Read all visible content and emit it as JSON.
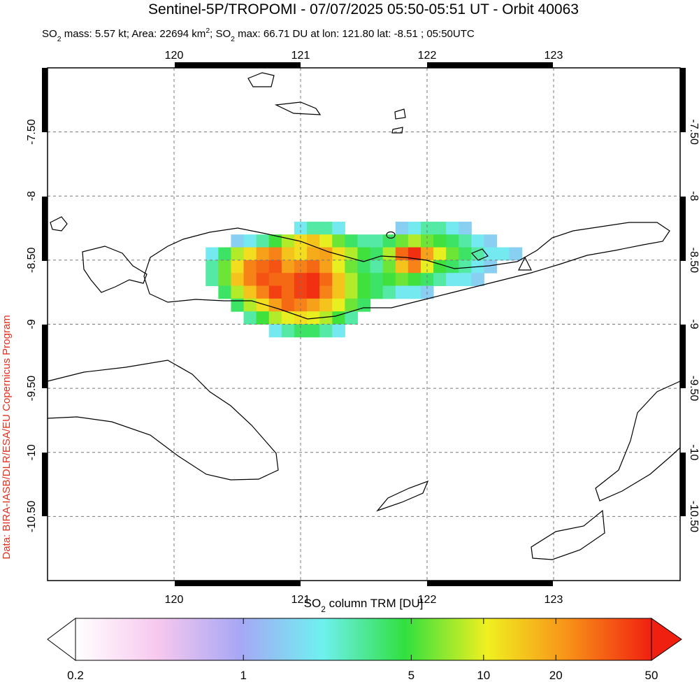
{
  "map": {
    "title": "Sentinel-5P/TROPOMI - 07/07/2025 05:50-05:51 UT - Orbit 40063",
    "subtitle": [
      {
        "text": "SO"
      },
      {
        "text": "2",
        "shift": "sub"
      },
      {
        "text": " mass: 5.57 kt; Area: 22694 km"
      },
      {
        "text": "2",
        "shift": "super"
      },
      {
        "text": "; SO"
      },
      {
        "text": "2",
        "shift": "sub"
      },
      {
        "text": " max: 66.71 DU at lon: 121.80 lat: -8.51 ; 05:50UTC"
      }
    ],
    "credit": "Data: BIRA-IASB/DLR/ESA/EU Copernicus Program",
    "lonlim": [
      119,
      124
    ],
    "latlim": [
      -11,
      -7
    ],
    "lon_ticks": [
      120,
      121,
      122,
      123
    ],
    "lat_ticks": [
      {
        "value": -7.5,
        "label": "-7.50"
      },
      -8,
      {
        "value": -8.5,
        "label": "-8.50"
      },
      -9,
      {
        "value": -9.5,
        "label": "-9.50"
      },
      -10,
      {
        "value": -10.5,
        "label": "-10.50"
      }
    ],
    "grid": true,
    "plume": [
      {
        "lat": -8.25,
        "lon": [
          121.0,
          121.1,
          121.2,
          121.3,
          121.8,
          121.9,
          122.0,
          122.1,
          122.2,
          122.3
        ],
        "values": [
          2,
          3,
          3,
          2,
          1.5,
          2,
          3,
          3,
          2,
          1.5
        ]
      },
      {
        "lat": -8.35,
        "lon": [
          120.5,
          120.6,
          120.7,
          120.8,
          120.9,
          121.0,
          121.1,
          121.2,
          121.3,
          121.4,
          121.5,
          121.6,
          121.7,
          121.8,
          121.9,
          122.0,
          122.1,
          122.2,
          122.3,
          122.4,
          122.5
        ],
        "values": [
          1.5,
          2,
          3,
          5,
          8,
          12,
          15,
          10,
          6,
          4,
          3,
          3,
          4,
          6,
          8,
          6,
          5,
          4,
          3,
          2,
          1.5
        ]
      },
      {
        "lat": -8.45,
        "lon": [
          120.3,
          120.4,
          120.5,
          120.6,
          120.7,
          120.8,
          120.9,
          121.0,
          121.1,
          121.2,
          121.3,
          121.4,
          121.5,
          121.6,
          121.7,
          121.8,
          121.9,
          122.0,
          122.1,
          122.2,
          122.3,
          122.4,
          122.5,
          122.6,
          122.7
        ],
        "values": [
          2,
          4,
          8,
          12,
          20,
          25,
          15,
          12,
          18,
          20,
          12,
          8,
          5,
          4,
          8,
          30,
          45,
          20,
          10,
          6,
          4,
          3,
          2,
          2,
          1.5
        ]
      },
      {
        "lat": -8.55,
        "lon": [
          120.3,
          120.4,
          120.5,
          120.6,
          120.7,
          120.8,
          120.9,
          121.0,
          121.1,
          121.2,
          121.3,
          121.4,
          121.5,
          121.6,
          121.7,
          121.8,
          121.9,
          122.0,
          122.1,
          122.2,
          122.3,
          122.4,
          122.5
        ],
        "values": [
          3,
          6,
          12,
          25,
          30,
          35,
          20,
          25,
          30,
          20,
          10,
          6,
          4,
          3,
          6,
          15,
          25,
          10,
          5,
          4,
          3,
          2,
          1.5
        ]
      },
      {
        "lat": -8.65,
        "lon": [
          120.3,
          120.4,
          120.5,
          120.6,
          120.7,
          120.8,
          120.9,
          121.0,
          121.1,
          121.2,
          121.3,
          121.4,
          121.5,
          121.6,
          121.7,
          121.8,
          121.9,
          122.0,
          122.1,
          122.2,
          122.3,
          122.4
        ],
        "values": [
          3,
          6,
          15,
          25,
          35,
          30,
          30,
          40,
          45,
          30,
          15,
          8,
          5,
          4,
          5,
          6,
          5,
          4,
          3,
          2,
          2,
          1.5
        ]
      },
      {
        "lat": -8.75,
        "lon": [
          120.4,
          120.5,
          120.6,
          120.7,
          120.8,
          120.9,
          121.0,
          121.1,
          121.2,
          121.3,
          121.4,
          121.5,
          121.6,
          121.7,
          121.8,
          121.9,
          122.0
        ],
        "values": [
          4,
          8,
          15,
          25,
          40,
          30,
          40,
          45,
          25,
          15,
          8,
          5,
          4,
          3,
          2,
          2,
          1.5
        ]
      },
      {
        "lat": -8.85,
        "lon": [
          120.5,
          120.6,
          120.7,
          120.8,
          120.9,
          121.0,
          121.1,
          121.2,
          121.3,
          121.4,
          121.5
        ],
        "values": [
          4,
          8,
          12,
          20,
          30,
          25,
          20,
          15,
          10,
          6,
          4
        ]
      },
      {
        "lat": -8.95,
        "lon": [
          120.6,
          120.7,
          120.8,
          120.9,
          121.0,
          121.1,
          121.2,
          121.3,
          121.4
        ],
        "values": [
          3,
          5,
          8,
          10,
          12,
          10,
          8,
          5,
          3
        ]
      },
      {
        "lat": -9.05,
        "lon": [
          120.8,
          120.9,
          121.0,
          121.1,
          121.2,
          121.3
        ],
        "values": [
          2,
          3,
          4,
          4,
          3,
          2
        ]
      }
    ],
    "colorbar": {
      "label": [
        {
          "text": "SO"
        },
        {
          "text": "2",
          "shift": "sub"
        },
        {
          "text": " column TRM [DU]"
        }
      ],
      "lim": [
        0.2,
        50
      ],
      "log": true,
      "ticks": [
        0.2,
        1,
        5,
        10,
        20,
        50
      ],
      "colors": [
        "#ffffff",
        "#f7c8ee",
        "#a7a7f5",
        "#6ff0f0",
        "#30e040",
        "#f0f020",
        "#f89018",
        "#f02010"
      ]
    }
  }
}
